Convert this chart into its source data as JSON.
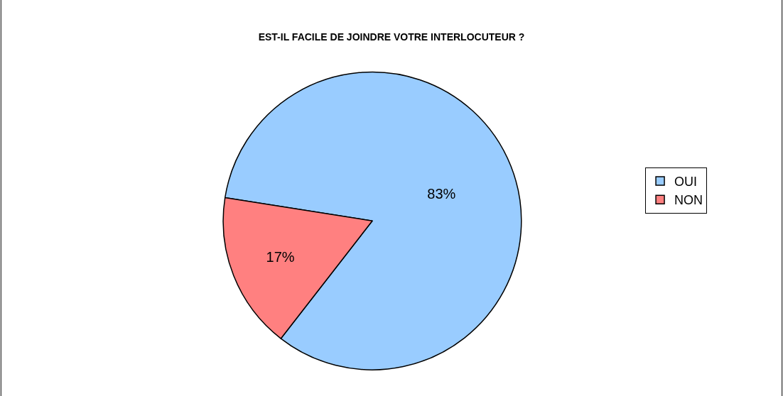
{
  "chart_data": {
    "type": "pie",
    "title": "EST-IL FACILE DE JOINDRE VOTRE INTERLOCUTEUR ?",
    "categories": [
      "OUI",
      "NON"
    ],
    "values": [
      83,
      17
    ],
    "colors": [
      "#99ccff",
      "#ff8080"
    ],
    "value_labels": [
      "83%",
      "17%"
    ],
    "legend": "right"
  }
}
